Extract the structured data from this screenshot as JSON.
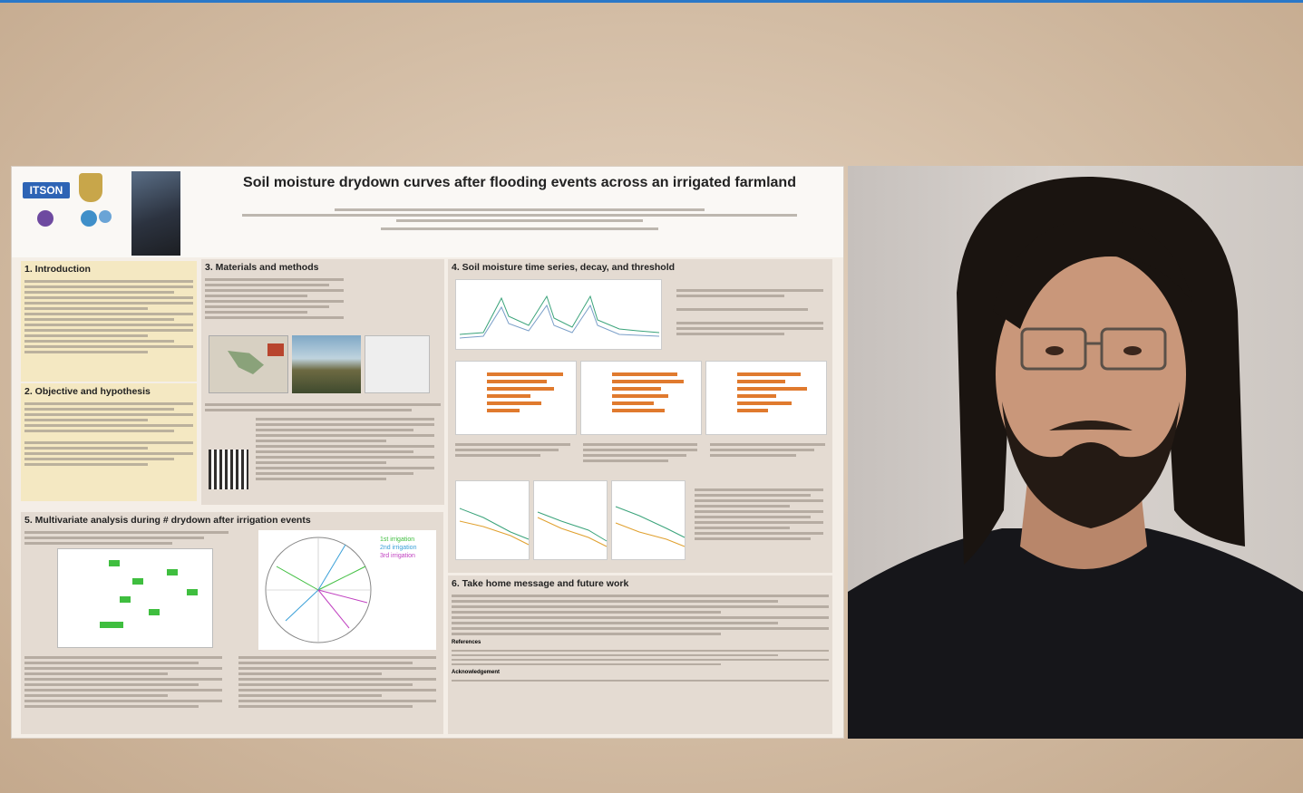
{
  "poster": {
    "title": "Soil moisture drydown curves after flooding events across an irrigated farmland",
    "logo_itson": "ITSON",
    "sections": {
      "introduction": "1. Introduction",
      "objective": "2. Objective and hypothesis",
      "methods": "3. Materials and methods",
      "timeseries": "4. Soil moisture time series, decay, and threshold",
      "multivariate": "5. Multivariate analysis during # drydown after irrigation events",
      "takehome": "6. Take home message and future work"
    },
    "legend": {
      "irrig1": "1st irrigation",
      "irrig2": "2nd irrigation",
      "irrig3": "3rd irrigation"
    },
    "subheads": {
      "references": "References",
      "acknowledgement": "Acknowledgement"
    }
  },
  "colors": {
    "accent_line": "#2a78c8",
    "section_yellow": "#f4e8c2",
    "section_gray": "#e4dbd2",
    "bar_orange": "#e07a2e",
    "cell_green": "#3fbe3f"
  }
}
